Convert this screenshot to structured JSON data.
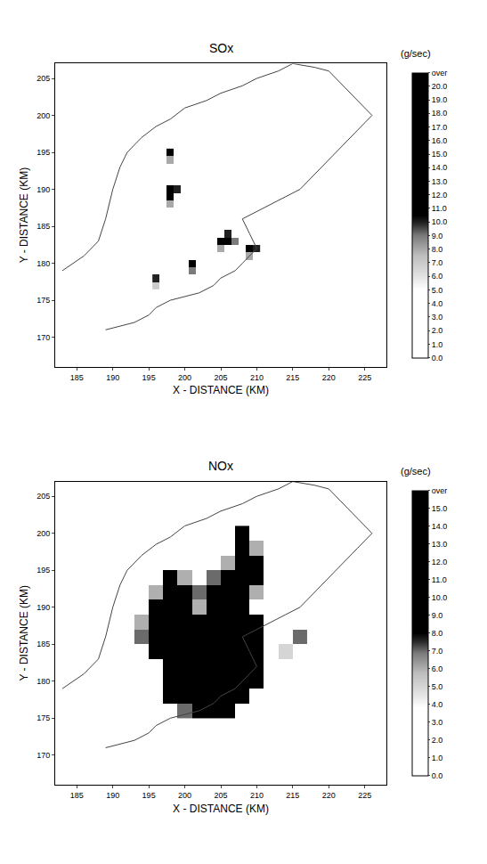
{
  "chart_data": [
    {
      "type": "heatmap",
      "title": "SOx",
      "colorbar_title": "(g/sec)",
      "x_label": "X - DISTANCE (KM)",
      "y_label": "Y - DISTANCE (KM)",
      "xlim": [
        182,
        228
      ],
      "ylim": [
        166,
        207
      ],
      "xticks": [
        185,
        190,
        195,
        200,
        205,
        210,
        215,
        220,
        225
      ],
      "yticks": [
        170,
        175,
        180,
        185,
        190,
        195,
        200,
        205
      ],
      "grid": false,
      "cell_size": 1,
      "cells": [
        [
          198,
          195,
          12
        ],
        [
          198,
          194,
          8
        ],
        [
          198,
          190,
          15
        ],
        [
          198,
          189,
          20
        ],
        [
          199,
          190,
          10
        ],
        [
          198,
          188,
          8
        ],
        [
          205,
          183,
          12
        ],
        [
          206,
          183,
          21
        ],
        [
          206,
          184,
          10
        ],
        [
          207,
          183,
          9
        ],
        [
          205,
          182,
          8
        ],
        [
          209,
          182,
          15
        ],
        [
          210,
          182,
          10
        ],
        [
          209,
          181,
          8
        ],
        [
          201,
          180,
          12
        ],
        [
          201,
          179,
          9
        ],
        [
          196,
          178,
          10
        ],
        [
          196,
          177,
          7
        ]
      ],
      "colorbar_range": [
        0,
        21
      ],
      "colorbar_ticks": [
        {
          "value": 0,
          "label": "0.0"
        },
        {
          "value": 1,
          "label": "1.0"
        },
        {
          "value": 2,
          "label": "2.0"
        },
        {
          "value": 3,
          "label": "3.0"
        },
        {
          "value": 4,
          "label": "4.0"
        },
        {
          "value": 5,
          "label": "5.0"
        },
        {
          "value": 6,
          "label": "6.0"
        },
        {
          "value": 7,
          "label": "7.0"
        },
        {
          "value": 8,
          "label": "8.0"
        },
        {
          "value": 9,
          "label": "9.0"
        },
        {
          "value": 10,
          "label": "10.0"
        },
        {
          "value": 11,
          "label": "11.0"
        },
        {
          "value": 12,
          "label": "12.0"
        },
        {
          "value": 13,
          "label": "13.0"
        },
        {
          "value": 14,
          "label": "14.0"
        },
        {
          "value": 15,
          "label": "15.0"
        },
        {
          "value": 16,
          "label": "16.0"
        },
        {
          "value": 17,
          "label": "17.0"
        },
        {
          "value": 18,
          "label": "18.0"
        },
        {
          "value": 19,
          "label": "19.0"
        },
        {
          "value": 20,
          "label": "20.0"
        },
        {
          "value": 21,
          "label": "over"
        }
      ],
      "coastline": {
        "x": [
          183,
          186,
          188,
          189,
          190,
          191,
          192,
          194,
          196,
          198,
          200,
          203,
          205,
          208,
          210,
          213,
          215,
          218,
          220,
          222,
          224,
          226,
          224,
          222,
          220,
          218,
          216,
          214,
          212,
          210,
          208,
          209,
          210,
          208,
          207,
          205,
          204,
          202,
          200,
          198,
          196,
          195,
          193,
          191,
          189
        ],
        "y": [
          179,
          181,
          183,
          186,
          190,
          193,
          195,
          197,
          198.5,
          199.5,
          201,
          202,
          203,
          204,
          205,
          206,
          207,
          206.5,
          206,
          204,
          202,
          200,
          198,
          196,
          194,
          192,
          190,
          189,
          188,
          187,
          186,
          184,
          182,
          180,
          179,
          178,
          177,
          176,
          175.5,
          175,
          174,
          173,
          172,
          171.5,
          171
        ]
      }
    },
    {
      "type": "heatmap",
      "title": "NOx",
      "colorbar_title": "(g/sec)",
      "x_label": "X - DISTANCE (KM)",
      "y_label": "Y - DISTANCE (KM)",
      "xlim": [
        182,
        228
      ],
      "ylim": [
        166,
        207
      ],
      "xticks": [
        185,
        190,
        195,
        200,
        205,
        210,
        215,
        220,
        225
      ],
      "yticks": [
        170,
        175,
        180,
        185,
        190,
        195,
        200,
        205
      ],
      "grid": false,
      "cell_size": 2,
      "cells": [
        [
          208,
          200,
          10
        ],
        [
          208,
          198,
          12
        ],
        [
          210,
          198,
          6
        ],
        [
          206,
          196,
          6
        ],
        [
          208,
          196,
          14
        ],
        [
          210,
          196,
          8
        ],
        [
          198,
          194,
          8
        ],
        [
          200,
          194,
          6
        ],
        [
          204,
          194,
          7
        ],
        [
          206,
          194,
          12
        ],
        [
          208,
          194,
          16
        ],
        [
          210,
          194,
          10
        ],
        [
          196,
          192,
          6
        ],
        [
          198,
          192,
          16
        ],
        [
          200,
          192,
          12
        ],
        [
          202,
          192,
          7
        ],
        [
          204,
          192,
          9
        ],
        [
          206,
          192,
          16
        ],
        [
          208,
          192,
          14
        ],
        [
          210,
          192,
          6
        ],
        [
          196,
          190,
          8
        ],
        [
          198,
          190,
          16
        ],
        [
          200,
          190,
          14
        ],
        [
          202,
          190,
          6
        ],
        [
          204,
          190,
          10
        ],
        [
          206,
          190,
          16
        ],
        [
          208,
          190,
          12
        ],
        [
          194,
          188,
          6
        ],
        [
          196,
          188,
          12
        ],
        [
          198,
          188,
          16
        ],
        [
          200,
          188,
          16
        ],
        [
          202,
          188,
          9
        ],
        [
          204,
          188,
          8
        ],
        [
          206,
          188,
          14
        ],
        [
          208,
          188,
          16
        ],
        [
          210,
          188,
          9
        ],
        [
          194,
          186,
          7
        ],
        [
          196,
          186,
          10
        ],
        [
          198,
          186,
          16
        ],
        [
          200,
          186,
          14
        ],
        [
          202,
          186,
          12
        ],
        [
          204,
          186,
          16
        ],
        [
          206,
          186,
          16
        ],
        [
          208,
          186,
          16
        ],
        [
          210,
          186,
          8
        ],
        [
          216,
          186,
          7
        ],
        [
          196,
          184,
          8
        ],
        [
          198,
          184,
          16
        ],
        [
          200,
          184,
          16
        ],
        [
          202,
          184,
          16
        ],
        [
          204,
          184,
          16
        ],
        [
          206,
          184,
          14
        ],
        [
          208,
          184,
          16
        ],
        [
          210,
          184,
          12
        ],
        [
          214,
          184,
          5
        ],
        [
          198,
          182,
          14
        ],
        [
          200,
          182,
          16
        ],
        [
          202,
          182,
          16
        ],
        [
          204,
          182,
          16
        ],
        [
          206,
          182,
          16
        ],
        [
          208,
          182,
          16
        ],
        [
          210,
          182,
          10
        ],
        [
          198,
          180,
          12
        ],
        [
          200,
          180,
          16
        ],
        [
          202,
          180,
          16
        ],
        [
          204,
          180,
          16
        ],
        [
          206,
          180,
          16
        ],
        [
          208,
          180,
          14
        ],
        [
          210,
          180,
          8
        ],
        [
          198,
          178,
          10
        ],
        [
          200,
          178,
          14
        ],
        [
          202,
          178,
          16
        ],
        [
          204,
          178,
          16
        ],
        [
          206,
          178,
          16
        ],
        [
          208,
          178,
          12
        ],
        [
          200,
          176,
          7
        ],
        [
          202,
          176,
          9
        ],
        [
          204,
          176,
          10
        ],
        [
          206,
          176,
          8
        ]
      ],
      "colorbar_range": [
        0,
        16
      ],
      "colorbar_ticks": [
        {
          "value": 0,
          "label": "0.0"
        },
        {
          "value": 1,
          "label": "1.0"
        },
        {
          "value": 2,
          "label": "2.0"
        },
        {
          "value": 3,
          "label": "3.0"
        },
        {
          "value": 4,
          "label": "4.0"
        },
        {
          "value": 5,
          "label": "5.0"
        },
        {
          "value": 6,
          "label": "6.0"
        },
        {
          "value": 7,
          "label": "7.0"
        },
        {
          "value": 8,
          "label": "8.0"
        },
        {
          "value": 9,
          "label": "9.0"
        },
        {
          "value": 10,
          "label": "10.0"
        },
        {
          "value": 11,
          "label": "11.0"
        },
        {
          "value": 12,
          "label": "12.0"
        },
        {
          "value": 13,
          "label": "13.0"
        },
        {
          "value": 14,
          "label": "14.0"
        },
        {
          "value": 15,
          "label": "15.0"
        },
        {
          "value": 16,
          "label": "over"
        }
      ],
      "coastline": {
        "x": [
          183,
          186,
          188,
          189,
          190,
          191,
          192,
          194,
          196,
          198,
          200,
          203,
          205,
          208,
          210,
          213,
          215,
          218,
          220,
          222,
          224,
          226,
          224,
          222,
          220,
          218,
          216,
          214,
          212,
          210,
          208,
          209,
          210,
          208,
          207,
          205,
          204,
          202,
          200,
          198,
          196,
          195,
          193,
          191,
          189
        ],
        "y": [
          179,
          181,
          183,
          186,
          190,
          193,
          195,
          197,
          198.5,
          199.5,
          201,
          202,
          203,
          204,
          205,
          206,
          207,
          206.5,
          206,
          204,
          202,
          200,
          198,
          196,
          194,
          192,
          190,
          189,
          188,
          187,
          186,
          184,
          182,
          180,
          179,
          178,
          177,
          176,
          175.5,
          175,
          174,
          173,
          172,
          171.5,
          171
        ]
      }
    }
  ]
}
